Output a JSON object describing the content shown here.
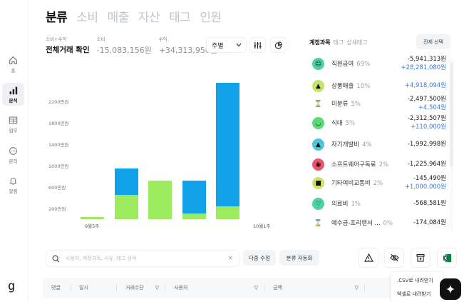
{
  "sidebar": {
    "items": [
      {
        "label": "홈",
        "icon": "home-icon"
      },
      {
        "label": "분석",
        "icon": "bar-chart-icon",
        "active": true
      },
      {
        "label": "업무",
        "icon": "table-icon"
      },
      {
        "label": "문의",
        "icon": "chat-icon"
      },
      {
        "label": "알림",
        "icon": "bell-icon"
      }
    ],
    "logo": "g"
  },
  "tabs": [
    "분류",
    "소비",
    "매출",
    "자산",
    "태그",
    "인원"
  ],
  "active_tab": "분류",
  "summary": {
    "total": {
      "label": "소비+수익",
      "value": "전체거래 확인"
    },
    "spend": {
      "label": "소비",
      "value": "-15,083,156원"
    },
    "income": {
      "label": "수익",
      "value": "+34,313,950원"
    }
  },
  "controls": {
    "period_select": "주별",
    "filter_icon": "sliders-icon",
    "pie_icon": "pie-chart-icon"
  },
  "chart_data": {
    "type": "bar",
    "stacked": true,
    "categories": [
      "9월5주",
      "",
      "",
      "",
      "",
      "10월1주"
    ],
    "x_tick_labels": [
      "9월5주",
      "10월1주"
    ],
    "series": [
      {
        "name": "소비",
        "color": "#9ceb5f",
        "values": [
          40,
          450,
          720,
          110,
          240,
          0
        ]
      },
      {
        "name": "수익",
        "color": "#11a1e8",
        "values": [
          0,
          500,
          0,
          610,
          2310,
          0
        ]
      }
    ],
    "y_tick_labels": [
      "200만원",
      "600만원",
      "1000만원",
      "1400만원",
      "1800만원",
      "2200만원"
    ],
    "ylabel": "만원",
    "ylim": [
      0,
      2600
    ],
    "grid": false,
    "title": ""
  },
  "right_panel": {
    "tabs": [
      "계정과목",
      "태그",
      "상세태그"
    ],
    "active_tab": "계정과목",
    "select_all": "전체 선택",
    "categories": [
      {
        "name": "직원급여",
        "pct": "69%",
        "neg": "-5,941,313원",
        "pos": "+28,281,080원",
        "icon_bg": "#4fd1a5",
        "glyph": "☺"
      },
      {
        "name": "상품매출",
        "pct": "10%",
        "neg": "",
        "pos": "+4,918,094원",
        "icon_bg": "#c9e26a",
        "glyph": "▲"
      },
      {
        "name": "미분류",
        "pct": "5%",
        "neg": "-2,497,500원",
        "pos": "+4,504원",
        "icon_bg": "transparent",
        "glyph": "⌛"
      },
      {
        "name": "식대",
        "pct": "5%",
        "neg": "-2,312,507원",
        "pos": "+110,000원",
        "icon_bg": "#5fd87a",
        "glyph": "◡"
      },
      {
        "name": "자기개발비",
        "pct": "4%",
        "neg": "-1,992,998원",
        "pos": "",
        "icon_bg": "#4fc5d8",
        "glyph": "▲"
      },
      {
        "name": "소프트웨어구독료",
        "pct": "2%",
        "neg": "-1,225,964원",
        "pos": "",
        "icon_bg": "#e8566e",
        "glyph": "◉"
      },
      {
        "name": "기타여비교통비",
        "pct": "2%",
        "neg": "-145,490원",
        "pos": "+1,000,000원",
        "icon_bg": "#c9e26a",
        "glyph": "■"
      },
      {
        "name": "의료비",
        "pct": "1%",
        "neg": "-568,581원",
        "pos": "",
        "icon_bg": "#4fd1a5",
        "glyph": "♡"
      },
      {
        "name": "예수금-프리랜서 ...",
        "pct": "0%",
        "neg": "-174,084원",
        "pos": "",
        "icon_bg": "transparent",
        "glyph": "⌛"
      }
    ]
  },
  "toolbar": {
    "search_placeholder": "사용처, 계정과목, 사유, 태그 검색",
    "search_value": "",
    "clear": "×",
    "bulk_edit": "다중 수정",
    "auto_classify": "분류 자동화",
    "icons": [
      "warning-icon",
      "hide-icon",
      "archive-icon",
      "excel-icon"
    ]
  },
  "table": {
    "columns": [
      "댓글",
      "일시",
      "거래수단",
      "사용처",
      "금액"
    ]
  },
  "dropdown": {
    "items": [
      ".CSV로 내려받기",
      "엑셀로 내려받기"
    ]
  },
  "colors": {
    "green": "#9ceb5f",
    "blue": "#11a1e8",
    "positive_text": "#3a79d6",
    "excel": "#1f8f4e"
  }
}
